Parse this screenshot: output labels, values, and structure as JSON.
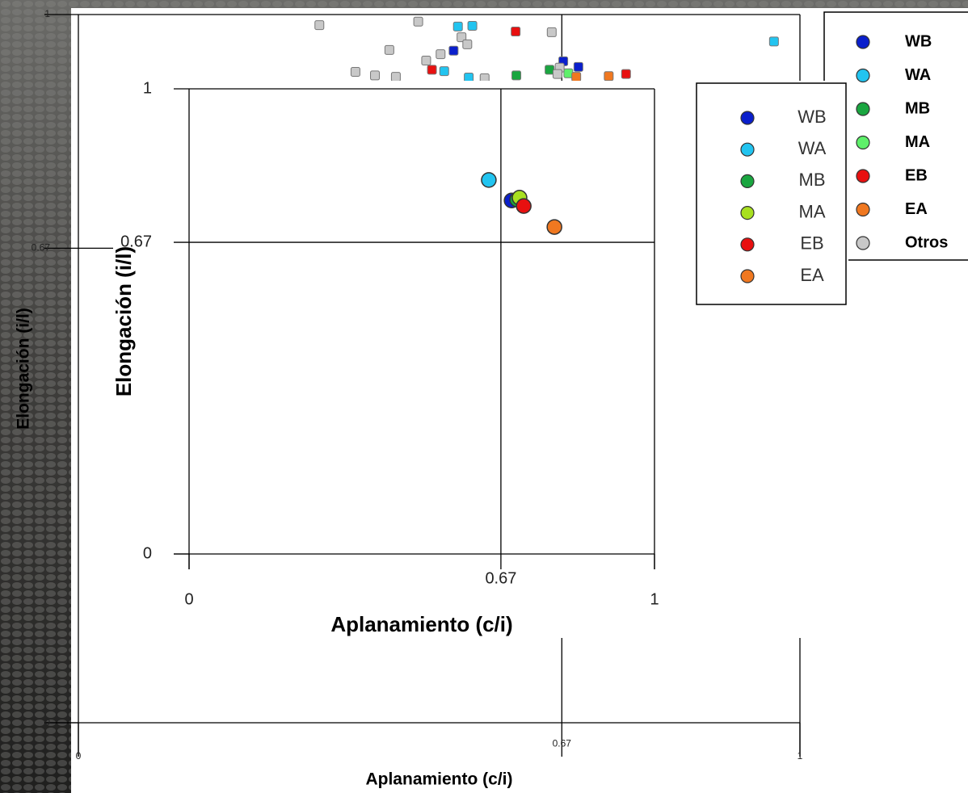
{
  "chart_data": [
    {
      "type": "scatter",
      "xlabel": "Aplanamiento (c/i)",
      "ylabel": "Elongación (i/l)",
      "xlim": [
        0,
        1
      ],
      "ylim": [
        0,
        1
      ],
      "xticks": [
        0,
        0.67,
        1
      ],
      "yticks": [
        0,
        0.67,
        1
      ],
      "marker": "square",
      "series": [
        {
          "name": "WB",
          "color": "#0a1fcc",
          "x": [
            0.52,
            0.672,
            0.693
          ],
          "values": [
            0.949,
            0.934,
            0.926
          ]
        },
        {
          "name": "WA",
          "color": "#22c4f0",
          "x": [
            0.526,
            0.546,
            0.507,
            0.541,
            0.964
          ],
          "values": [
            0.983,
            0.984,
            0.92,
            0.911,
            0.962
          ]
        },
        {
          "name": "MB",
          "color": "#1aa640",
          "x": [
            0.653,
            0.607
          ],
          "values": [
            0.922,
            0.914
          ]
        },
        {
          "name": "MA",
          "color": "#5ef06a",
          "x": [
            0.679
          ],
          "values": [
            0.917
          ]
        },
        {
          "name": "EB",
          "color": "#e81010",
          "x": [
            0.606,
            0.49,
            0.759
          ],
          "values": [
            0.976,
            0.922,
            0.916
          ]
        },
        {
          "name": "EA",
          "color": "#f07820",
          "x": [
            0.735,
            0.69
          ],
          "values": [
            0.913,
            0.912
          ]
        },
        {
          "name": "Otros",
          "color": "#c8c8c8",
          "x": [
            0.334,
            0.471,
            0.431,
            0.502,
            0.482,
            0.531,
            0.539,
            0.656,
            0.384,
            0.411,
            0.44,
            0.563,
            0.667,
            0.664
          ],
          "values": [
            0.985,
            0.99,
            0.95,
            0.944,
            0.935,
            0.968,
            0.958,
            0.975,
            0.919,
            0.914,
            0.912,
            0.91,
            0.925,
            0.916
          ]
        }
      ]
    },
    {
      "type": "scatter",
      "xlabel": "Aplanamiento (c/i)",
      "ylabel": "Elongación (i/l)",
      "xlim": [
        0,
        1
      ],
      "ylim": [
        0,
        1
      ],
      "xticks": [
        0,
        0.67,
        1
      ],
      "yticks": [
        0,
        0.67,
        1
      ],
      "marker": "circle",
      "series": [
        {
          "name": "WB",
          "color": "#0a1fcc",
          "x": [
            0.693
          ],
          "values": [
            0.76
          ]
        },
        {
          "name": "WA",
          "color": "#22c4f0",
          "x": [
            0.644
          ],
          "values": [
            0.804
          ]
        },
        {
          "name": "MB",
          "color": "#1aa640",
          "x": [
            0.705
          ],
          "values": [
            0.762
          ]
        },
        {
          "name": "MA",
          "color": "#a8e020",
          "x": [
            0.71
          ],
          "values": [
            0.766
          ]
        },
        {
          "name": "EB",
          "color": "#e81010",
          "x": [
            0.719
          ],
          "values": [
            0.748
          ]
        },
        {
          "name": "EA",
          "color": "#f07820",
          "x": [
            0.785
          ],
          "values": [
            0.703
          ]
        }
      ]
    }
  ]
}
